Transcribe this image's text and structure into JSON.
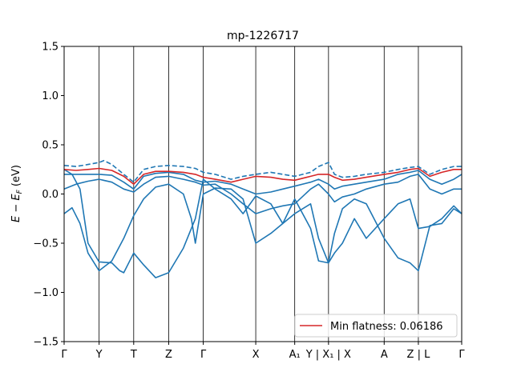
{
  "chart_data": {
    "type": "line",
    "title": "mp-1226717",
    "ylabel": "E − E_F (eV)",
    "ylabel_main": "E − E",
    "ylabel_sub": "F",
    "ylabel_unit": " (eV)",
    "ylim": [
      -1.5,
      1.5
    ],
    "yticks": [
      -1.5,
      -1.0,
      -0.5,
      0.0,
      0.5,
      1.0,
      1.5
    ],
    "ytick_labels": [
      "−1.5",
      "−1.0",
      "−0.5",
      "0.0",
      "0.5",
      "1.0",
      "1.5"
    ],
    "xlim": [
      0,
      1
    ],
    "kpoints": [
      {
        "label": "Γ",
        "x": 0.0
      },
      {
        "label": "Y",
        "x": 0.088
      },
      {
        "label": "T",
        "x": 0.175
      },
      {
        "label": "Z",
        "x": 0.263
      },
      {
        "label": "Γ",
        "x": 0.35
      },
      {
        "label": "X",
        "x": 0.482
      },
      {
        "label": "A₁",
        "x": 0.58
      },
      {
        "label": "Y | X₁ | X",
        "x": 0.665
      },
      {
        "label": "A",
        "x": 0.805
      },
      {
        "label": "Z | L",
        "x": 0.891
      },
      {
        "label": "Γ",
        "x": 1.0
      }
    ],
    "legend": {
      "label": "Min flatness: 0.06186",
      "placement": "lower-right",
      "color": "#d62728"
    },
    "grid": false,
    "series": [
      {
        "style": "solid",
        "color": "#1f77b4",
        "points": [
          [
            0,
            -0.2
          ],
          [
            0.02,
            -0.14
          ],
          [
            0.04,
            -0.3
          ],
          [
            0.06,
            -0.6
          ],
          [
            0.088,
            -0.78
          ],
          [
            0.12,
            -0.68
          ],
          [
            0.15,
            -0.45
          ],
          [
            0.175,
            -0.22
          ],
          [
            0.2,
            -0.05
          ],
          [
            0.23,
            0.07
          ],
          [
            0.263,
            0.1
          ],
          [
            0.3,
            0.0
          ],
          [
            0.32,
            -0.25
          ],
          [
            0.33,
            -0.5
          ],
          [
            0.35,
            0.0
          ],
          [
            0.38,
            0.06
          ],
          [
            0.42,
            0.05
          ],
          [
            0.45,
            -0.05
          ],
          [
            0.482,
            -0.5
          ],
          [
            0.52,
            -0.4
          ],
          [
            0.55,
            -0.3
          ],
          [
            0.58,
            -0.2
          ],
          [
            0.62,
            -0.1
          ],
          [
            0.64,
            -0.45
          ],
          [
            0.665,
            -0.7
          ],
          [
            0.68,
            -0.4
          ],
          [
            0.7,
            -0.15
          ],
          [
            0.73,
            -0.05
          ],
          [
            0.76,
            -0.1
          ],
          [
            0.805,
            -0.45
          ],
          [
            0.84,
            -0.65
          ],
          [
            0.87,
            -0.7
          ],
          [
            0.891,
            -0.78
          ],
          [
            0.92,
            -0.32
          ],
          [
            0.95,
            -0.3
          ],
          [
            0.98,
            -0.15
          ],
          [
            1.0,
            -0.2
          ]
        ]
      },
      {
        "style": "solid",
        "color": "#1f77b4",
        "points": [
          [
            0,
            0.25
          ],
          [
            0.02,
            0.2
          ],
          [
            0.04,
            0.05
          ],
          [
            0.06,
            -0.5
          ],
          [
            0.088,
            -0.69
          ],
          [
            0.12,
            -0.7
          ],
          [
            0.14,
            -0.78
          ],
          [
            0.15,
            -0.8
          ],
          [
            0.175,
            -0.6
          ],
          [
            0.2,
            -0.72
          ],
          [
            0.23,
            -0.85
          ],
          [
            0.263,
            -0.8
          ],
          [
            0.3,
            -0.55
          ],
          [
            0.33,
            -0.25
          ],
          [
            0.35,
            0.15
          ],
          [
            0.38,
            0.05
          ],
          [
            0.42,
            -0.05
          ],
          [
            0.45,
            -0.2
          ],
          [
            0.482,
            -0.02
          ],
          [
            0.52,
            -0.1
          ],
          [
            0.55,
            -0.3
          ],
          [
            0.58,
            -0.05
          ],
          [
            0.62,
            -0.35
          ],
          [
            0.64,
            -0.68
          ],
          [
            0.665,
            -0.7
          ],
          [
            0.68,
            -0.6
          ],
          [
            0.7,
            -0.5
          ],
          [
            0.73,
            -0.25
          ],
          [
            0.76,
            -0.45
          ],
          [
            0.805,
            -0.25
          ],
          [
            0.84,
            -0.1
          ],
          [
            0.87,
            -0.05
          ],
          [
            0.891,
            -0.35
          ],
          [
            0.92,
            -0.33
          ],
          [
            0.95,
            -0.25
          ],
          [
            0.98,
            -0.12
          ],
          [
            1.0,
            -0.2
          ]
        ]
      },
      {
        "style": "solid",
        "color": "#1f77b4",
        "points": [
          [
            0,
            0.05
          ],
          [
            0.03,
            0.1
          ],
          [
            0.06,
            0.13
          ],
          [
            0.088,
            0.15
          ],
          [
            0.12,
            0.12
          ],
          [
            0.15,
            0.05
          ],
          [
            0.175,
            0.02
          ],
          [
            0.2,
            0.1
          ],
          [
            0.23,
            0.17
          ],
          [
            0.263,
            0.18
          ],
          [
            0.3,
            0.15
          ],
          [
            0.33,
            0.12
          ],
          [
            0.35,
            0.09
          ],
          [
            0.38,
            0.1
          ],
          [
            0.42,
            0.0
          ],
          [
            0.45,
            -0.1
          ],
          [
            0.482,
            -0.2
          ],
          [
            0.52,
            -0.15
          ],
          [
            0.55,
            -0.12
          ],
          [
            0.58,
            -0.1
          ],
          [
            0.62,
            0.05
          ],
          [
            0.64,
            0.1
          ],
          [
            0.665,
            0.0
          ],
          [
            0.68,
            -0.08
          ],
          [
            0.7,
            -0.03
          ],
          [
            0.73,
            0.0
          ],
          [
            0.76,
            0.05
          ],
          [
            0.805,
            0.1
          ],
          [
            0.84,
            0.12
          ],
          [
            0.87,
            0.18
          ],
          [
            0.891,
            0.2
          ],
          [
            0.92,
            0.05
          ],
          [
            0.95,
            0.0
          ],
          [
            0.98,
            0.05
          ],
          [
            1.0,
            0.05
          ]
        ]
      },
      {
        "style": "solid",
        "color": "#1f77b4",
        "points": [
          [
            0,
            0.2
          ],
          [
            0.03,
            0.2
          ],
          [
            0.06,
            0.2
          ],
          [
            0.088,
            0.2
          ],
          [
            0.12,
            0.19
          ],
          [
            0.15,
            0.12
          ],
          [
            0.175,
            0.05
          ],
          [
            0.2,
            0.18
          ],
          [
            0.23,
            0.21
          ],
          [
            0.263,
            0.22
          ],
          [
            0.3,
            0.2
          ],
          [
            0.33,
            0.14
          ],
          [
            0.35,
            0.12
          ],
          [
            0.38,
            0.13
          ],
          [
            0.42,
            0.1
          ],
          [
            0.45,
            0.05
          ],
          [
            0.482,
            0.0
          ],
          [
            0.52,
            0.02
          ],
          [
            0.55,
            0.05
          ],
          [
            0.58,
            0.08
          ],
          [
            0.62,
            0.12
          ],
          [
            0.64,
            0.15
          ],
          [
            0.665,
            0.1
          ],
          [
            0.68,
            0.05
          ],
          [
            0.7,
            0.08
          ],
          [
            0.73,
            0.1
          ],
          [
            0.76,
            0.12
          ],
          [
            0.805,
            0.15
          ],
          [
            0.84,
            0.2
          ],
          [
            0.87,
            0.22
          ],
          [
            0.891,
            0.24
          ],
          [
            0.92,
            0.15
          ],
          [
            0.95,
            0.1
          ],
          [
            0.98,
            0.15
          ],
          [
            1.0,
            0.2
          ]
        ]
      },
      {
        "style": "dashed",
        "color": "#1f77b4",
        "points": [
          [
            0,
            0.29
          ],
          [
            0.03,
            0.28
          ],
          [
            0.06,
            0.3
          ],
          [
            0.088,
            0.32
          ],
          [
            0.1,
            0.34
          ],
          [
            0.12,
            0.3
          ],
          [
            0.15,
            0.2
          ],
          [
            0.175,
            0.12
          ],
          [
            0.2,
            0.25
          ],
          [
            0.23,
            0.28
          ],
          [
            0.263,
            0.29
          ],
          [
            0.3,
            0.28
          ],
          [
            0.33,
            0.26
          ],
          [
            0.35,
            0.22
          ],
          [
            0.38,
            0.2
          ],
          [
            0.42,
            0.15
          ],
          [
            0.45,
            0.18
          ],
          [
            0.482,
            0.2
          ],
          [
            0.52,
            0.22
          ],
          [
            0.55,
            0.2
          ],
          [
            0.58,
            0.18
          ],
          [
            0.62,
            0.22
          ],
          [
            0.64,
            0.28
          ],
          [
            0.665,
            0.32
          ],
          [
            0.68,
            0.2
          ],
          [
            0.7,
            0.17
          ],
          [
            0.73,
            0.18
          ],
          [
            0.76,
            0.2
          ],
          [
            0.805,
            0.22
          ],
          [
            0.84,
            0.25
          ],
          [
            0.87,
            0.27
          ],
          [
            0.891,
            0.28
          ],
          [
            0.92,
            0.2
          ],
          [
            0.95,
            0.25
          ],
          [
            0.98,
            0.28
          ],
          [
            1.0,
            0.28
          ]
        ]
      },
      {
        "style": "solid",
        "color": "#d62728",
        "points": [
          [
            0,
            0.25
          ],
          [
            0.03,
            0.24
          ],
          [
            0.06,
            0.25
          ],
          [
            0.088,
            0.26
          ],
          [
            0.12,
            0.24
          ],
          [
            0.15,
            0.18
          ],
          [
            0.175,
            0.1
          ],
          [
            0.2,
            0.2
          ],
          [
            0.23,
            0.23
          ],
          [
            0.263,
            0.23
          ],
          [
            0.3,
            0.22
          ],
          [
            0.33,
            0.2
          ],
          [
            0.35,
            0.17
          ],
          [
            0.38,
            0.15
          ],
          [
            0.42,
            0.12
          ],
          [
            0.45,
            0.15
          ],
          [
            0.482,
            0.18
          ],
          [
            0.52,
            0.17
          ],
          [
            0.55,
            0.15
          ],
          [
            0.58,
            0.14
          ],
          [
            0.62,
            0.18
          ],
          [
            0.64,
            0.2
          ],
          [
            0.665,
            0.2
          ],
          [
            0.68,
            0.17
          ],
          [
            0.7,
            0.14
          ],
          [
            0.73,
            0.15
          ],
          [
            0.76,
            0.17
          ],
          [
            0.805,
            0.2
          ],
          [
            0.84,
            0.22
          ],
          [
            0.87,
            0.25
          ],
          [
            0.891,
            0.26
          ],
          [
            0.92,
            0.18
          ],
          [
            0.95,
            0.22
          ],
          [
            0.98,
            0.25
          ],
          [
            1.0,
            0.25
          ]
        ]
      }
    ]
  }
}
